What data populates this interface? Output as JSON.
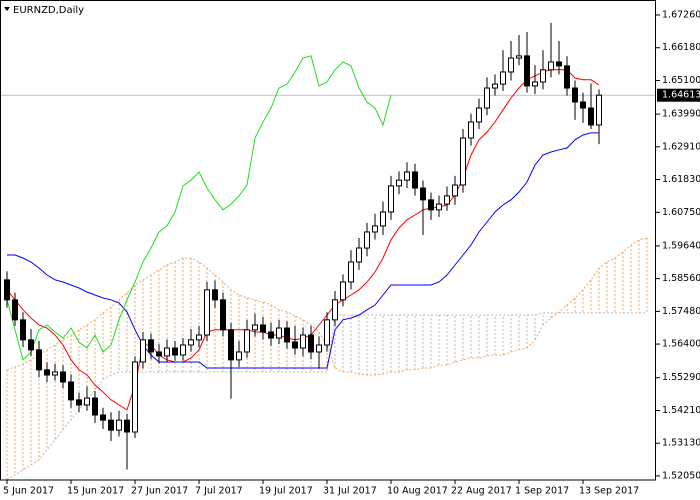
{
  "chart_data": {
    "type": "candlestick",
    "title": "EURNZD,Daily",
    "categories": [
      "5 Jun 2017",
      null,
      null,
      null,
      null,
      null,
      null,
      null,
      "15 Jun 2017",
      null,
      null,
      null,
      null,
      null,
      null,
      null,
      "27 Jun 2017",
      null,
      null,
      null,
      null,
      null,
      null,
      null,
      "7 Jul 2017",
      null,
      null,
      null,
      null,
      null,
      null,
      null,
      "19 Jul 2017",
      null,
      null,
      null,
      null,
      null,
      null,
      null,
      "31 Jul 2017",
      null,
      null,
      null,
      null,
      null,
      null,
      null,
      "10 Aug 2017",
      null,
      null,
      null,
      null,
      null,
      null,
      null,
      "22 Aug 2017",
      null,
      null,
      null,
      null,
      null,
      null,
      null,
      "1 Sep 2017",
      null,
      null,
      null,
      null,
      null,
      null,
      null,
      "13 Sep 2017",
      null,
      null,
      null,
      null,
      null,
      null,
      null,
      null
    ],
    "open": [
      1.5852,
      1.5786,
      1.572,
      1.5654,
      1.5621,
      1.5555,
      1.5538,
      1.5548,
      1.5515,
      1.5456,
      1.5439,
      1.5462,
      1.5406,
      1.5389,
      1.5356,
      1.5389,
      1.535,
      1.5581,
      1.5654,
      1.5614,
      1.5601,
      1.5627,
      1.5604,
      1.5637,
      1.5654,
      1.567,
      1.5819,
      1.5786,
      1.5687,
      1.5588,
      1.5614,
      1.5687,
      1.5703,
      1.568,
      1.566,
      1.5693,
      1.5647,
      1.5627,
      1.567,
      1.5614,
      1.5637,
      1.572,
      1.5786,
      1.5845,
      1.5911,
      1.5957,
      1.601,
      1.603,
      1.6076,
      1.6162,
      1.6181,
      1.6208,
      1.6155,
      1.6116,
      1.6083,
      1.6102,
      1.6129,
      1.6165,
      1.632,
      1.6373,
      1.6419,
      1.6485,
      1.6498,
      1.6538,
      1.6584,
      1.6591,
      1.6492,
      1.6505,
      1.6545,
      1.6571,
      1.6558,
      1.6485,
      1.6439,
      1.6419,
      1.6363,
      null,
      null,
      null,
      null,
      null,
      null
    ],
    "high": [
      1.588,
      1.581,
      1.5745,
      1.569,
      1.565,
      1.558,
      1.5575,
      1.557,
      1.554,
      1.548,
      1.55,
      1.5485,
      1.543,
      1.5415,
      1.542,
      1.541,
      1.56,
      1.568,
      1.5675,
      1.564,
      1.5655,
      1.565,
      1.566,
      1.569,
      1.57,
      1.5845,
      1.585,
      1.581,
      1.571,
      1.565,
      1.572,
      1.574,
      1.573,
      1.571,
      1.572,
      1.5715,
      1.57,
      1.5695,
      1.57,
      1.5665,
      1.5745,
      1.5815,
      1.587,
      1.595,
      1.599,
      1.604,
      1.607,
      1.611,
      1.6195,
      1.621,
      1.624,
      1.6235,
      1.618,
      1.614,
      1.613,
      1.616,
      1.6195,
      1.635,
      1.64,
      1.645,
      1.652,
      1.653,
      1.661,
      1.664,
      1.666,
      1.667,
      1.656,
      1.661,
      1.67,
      1.664,
      1.659,
      1.651,
      1.647,
      1.65,
      1.648,
      null,
      null,
      null,
      null,
      null,
      null
    ],
    "low": [
      1.576,
      1.57,
      1.563,
      1.56,
      1.553,
      1.5515,
      1.552,
      1.5495,
      1.543,
      1.5415,
      1.542,
      1.538,
      1.536,
      1.532,
      1.5335,
      1.5226,
      1.533,
      1.556,
      1.559,
      1.5575,
      1.558,
      1.5585,
      1.5585,
      1.5615,
      1.563,
      1.565,
      1.576,
      1.5665,
      1.546,
      1.5565,
      1.5595,
      1.5665,
      1.5655,
      1.5635,
      1.564,
      1.5625,
      1.5605,
      1.56,
      1.559,
      1.556,
      1.5615,
      1.57,
      1.5765,
      1.582,
      1.5885,
      1.593,
      1.5985,
      1.6,
      1.605,
      1.6135,
      1.6155,
      1.613,
      1.6,
      1.605,
      1.606,
      1.608,
      1.61,
      1.614,
      1.6295,
      1.635,
      1.6395,
      1.646,
      1.6475,
      1.651,
      1.656,
      1.647,
      1.6465,
      1.648,
      1.652,
      1.653,
      1.646,
      1.638,
      1.637,
      1.635,
      1.63,
      null,
      null,
      null,
      null,
      null,
      null
    ],
    "close": [
      1.5786,
      1.572,
      1.5654,
      1.5621,
      1.5555,
      1.5538,
      1.5548,
      1.5515,
      1.5456,
      1.5439,
      1.5462,
      1.5406,
      1.5389,
      1.5356,
      1.5389,
      1.535,
      1.5581,
      1.5654,
      1.5614,
      1.5601,
      1.5627,
      1.5604,
      1.5637,
      1.5654,
      1.567,
      1.5819,
      1.5786,
      1.5687,
      1.5588,
      1.5614,
      1.5687,
      1.5703,
      1.568,
      1.566,
      1.5693,
      1.5647,
      1.5627,
      1.567,
      1.5614,
      1.5637,
      1.572,
      1.5786,
      1.5845,
      1.5911,
      1.5957,
      1.601,
      1.603,
      1.6076,
      1.6162,
      1.6181,
      1.6208,
      1.6155,
      1.6116,
      1.6083,
      1.6102,
      1.6129,
      1.6165,
      1.632,
      1.6373,
      1.6419,
      1.6485,
      1.6498,
      1.6538,
      1.6584,
      1.6591,
      1.6492,
      1.6505,
      1.6545,
      1.6571,
      1.6558,
      1.6485,
      1.6439,
      1.6419,
      1.6363,
      1.64613,
      null,
      null,
      null,
      null,
      null,
      null
    ],
    "up_color": "#ffffff",
    "down_color": "#000000",
    "candle_outline": "#000000",
    "lines": [
      {
        "color": "#ff0000",
        "values": [
          1.5819,
          1.5786,
          1.5753,
          1.5726,
          1.5703,
          1.5693,
          1.567,
          1.5637,
          1.5588,
          1.5555,
          1.5538,
          1.5505,
          1.5482,
          1.5456,
          1.5439,
          1.5423,
          1.5505,
          1.5637,
          1.5637,
          1.5604,
          1.5588,
          1.5581,
          1.5581,
          1.5594,
          1.5621,
          1.568,
          1.5687,
          1.5687,
          1.5687,
          1.5687,
          1.5687,
          1.568,
          1.568,
          1.567,
          1.567,
          1.566,
          1.5654,
          1.566,
          1.567,
          1.5703,
          1.5736,
          1.5769,
          1.5786,
          1.5802,
          1.5819,
          1.5845,
          1.5878,
          1.5924,
          1.5984,
          1.6023,
          1.605,
          1.6066,
          1.6083,
          1.6089,
          1.6092,
          1.6099,
          1.6132,
          1.6188,
          1.6264,
          1.6314,
          1.634,
          1.6373,
          1.6413,
          1.6452,
          1.6485,
          1.6512,
          1.6525,
          1.6538,
          1.6545,
          1.6545,
          1.6545,
          1.6518,
          1.6512,
          1.6512,
          1.6495,
          null,
          null,
          null,
          null,
          null,
          null
        ]
      },
      {
        "color": "#0000ff",
        "values": [
          1.5934,
          1.5934,
          1.5924,
          1.5911,
          1.5891,
          1.5868,
          1.5852,
          1.5845,
          1.5835,
          1.5825,
          1.5812,
          1.5802,
          1.5792,
          1.5786,
          1.5776,
          1.5746,
          1.5687,
          1.5637,
          1.5604,
          1.5581,
          1.5581,
          1.5581,
          1.5581,
          1.5581,
          1.5581,
          1.5561,
          1.5561,
          1.5561,
          1.5561,
          1.5561,
          1.5561,
          1.5561,
          1.5561,
          1.5561,
          1.5561,
          1.5561,
          1.5561,
          1.5561,
          1.5561,
          1.5561,
          1.5561,
          1.5687,
          1.572,
          1.5726,
          1.5736,
          1.5753,
          1.5769,
          1.5802,
          1.5835,
          1.5835,
          1.5835,
          1.5835,
          1.5835,
          1.5835,
          1.5845,
          1.5868,
          1.5901,
          1.5934,
          1.5967,
          1.601,
          1.6043,
          1.6076,
          1.6099,
          1.6116,
          1.6142,
          1.6175,
          1.6231,
          1.6264,
          1.6274,
          1.6281,
          1.6287,
          1.6314,
          1.633,
          1.6337,
          1.6337,
          null,
          null,
          null,
          null,
          null,
          null
        ]
      },
      {
        "color": "#22dd22",
        "values": [
          1.5786,
          1.5687,
          1.5588,
          1.5614,
          1.5687,
          1.5703,
          1.568,
          1.566,
          1.5693,
          1.5647,
          1.5627,
          1.567,
          1.5614,
          1.5637,
          1.572,
          1.5786,
          1.5845,
          1.5911,
          1.5957,
          1.601,
          1.603,
          1.6076,
          1.6162,
          1.6181,
          1.6208,
          1.6155,
          1.6116,
          1.6083,
          1.6102,
          1.6129,
          1.6165,
          1.632,
          1.6373,
          1.6419,
          1.6485,
          1.6498,
          1.6538,
          1.6584,
          1.6591,
          1.6492,
          1.6505,
          1.6545,
          1.6571,
          1.6558,
          1.6485,
          1.6439,
          1.6419,
          1.6363,
          1.64613,
          null,
          null,
          null,
          null,
          null,
          null,
          null,
          null,
          null,
          null,
          null,
          null,
          null,
          null,
          null,
          null,
          null,
          null,
          null,
          null,
          null,
          null,
          null,
          null,
          null,
          null,
          null,
          null,
          null,
          null,
          null,
          null
        ]
      }
    ],
    "cloud": {
      "span_a": [
        1.5555,
        1.5565,
        1.5574,
        1.5588,
        1.5604,
        1.5621,
        1.5637,
        1.5654,
        1.567,
        1.5687,
        1.5703,
        1.572,
        1.5743,
        1.5762,
        1.5786,
        1.5809,
        1.5835,
        1.5852,
        1.5868,
        1.5885,
        1.5901,
        1.5911,
        1.5924,
        1.5924,
        1.5911,
        1.5891,
        1.5868,
        1.5845,
        1.5819,
        1.5802,
        1.5792,
        1.5786,
        1.5779,
        1.5769,
        1.5753,
        1.5746,
        1.5733,
        1.572,
        1.5703,
        1.568,
        1.5637,
        1.5561,
        1.5548,
        1.5548,
        1.5541,
        1.5538,
        1.5538,
        1.5541,
        1.5548,
        1.5548,
        1.5555,
        1.5555,
        1.5561,
        1.5561,
        1.5571,
        1.5571,
        1.5581,
        1.5588,
        1.5594,
        1.5594,
        1.5601,
        1.5604,
        1.5604,
        1.5614,
        1.5621,
        1.5627,
        1.5654,
        1.5703,
        1.5726,
        1.5746,
        1.5769,
        1.5792,
        1.5819,
        1.5852,
        1.5891,
        1.5911,
        1.5924,
        1.5944,
        1.5967,
        1.5984,
        1.599
      ],
      "span_b": [
        1.5192,
        1.5208,
        1.5225,
        1.5241,
        1.5258,
        1.5291,
        1.5324,
        1.5357,
        1.539,
        1.5423,
        1.5456,
        1.5489,
        1.5522,
        1.5538,
        1.5548,
        1.5548,
        1.5548,
        1.5548,
        1.5548,
        1.5548,
        1.5548,
        1.5548,
        1.5548,
        1.5548,
        1.5548,
        1.5548,
        1.5548,
        1.5548,
        1.5548,
        1.5548,
        1.5548,
        1.5548,
        1.5548,
        1.5548,
        1.5548,
        1.5548,
        1.5548,
        1.5548,
        1.5548,
        1.5548,
        1.5548,
        1.5736,
        1.5736,
        1.5736,
        1.5736,
        1.5736,
        1.5736,
        1.5736,
        1.5736,
        1.5736,
        1.5736,
        1.5736,
        1.5736,
        1.5736,
        1.5736,
        1.5736,
        1.5736,
        1.5736,
        1.5736,
        1.5736,
        1.5736,
        1.5736,
        1.5736,
        1.5736,
        1.5736,
        1.5736,
        1.5736,
        1.5743,
        1.5743,
        1.5743,
        1.5743,
        1.5743,
        1.5743,
        1.5743,
        1.5743,
        1.5743,
        1.5743,
        1.5743,
        1.5743,
        1.5743,
        1.5743
      ],
      "up_color": "#f4a460",
      "down_color": "#b8b8b8"
    },
    "last_price": 1.64613,
    "ylim": [
      1.51915,
      1.67755
    ],
    "yticks": [
      {
        "value": 1.5205,
        "label": "1.52050"
      },
      {
        "value": 1.5313,
        "label": "1.53130"
      },
      {
        "value": 1.5421,
        "label": "1.54210"
      },
      {
        "value": 1.5529,
        "label": "1.55290"
      },
      {
        "value": 1.564,
        "label": "1.56400"
      },
      {
        "value": 1.5748,
        "label": "1.57480"
      },
      {
        "value": 1.5856,
        "label": "1.58560"
      },
      {
        "value": 1.5964,
        "label": "1.59640"
      },
      {
        "value": 1.6075,
        "label": "1.60750"
      },
      {
        "value": 1.6183,
        "label": "1.61830"
      },
      {
        "value": 1.6291,
        "label": "1.62910"
      },
      {
        "value": 1.6399,
        "label": "1.63990"
      },
      {
        "value": 1.651,
        "label": "1.65100"
      },
      {
        "value": 1.6618,
        "label": "1.66180"
      },
      {
        "value": 1.6726,
        "label": "1.67260"
      }
    ],
    "grid": false
  }
}
